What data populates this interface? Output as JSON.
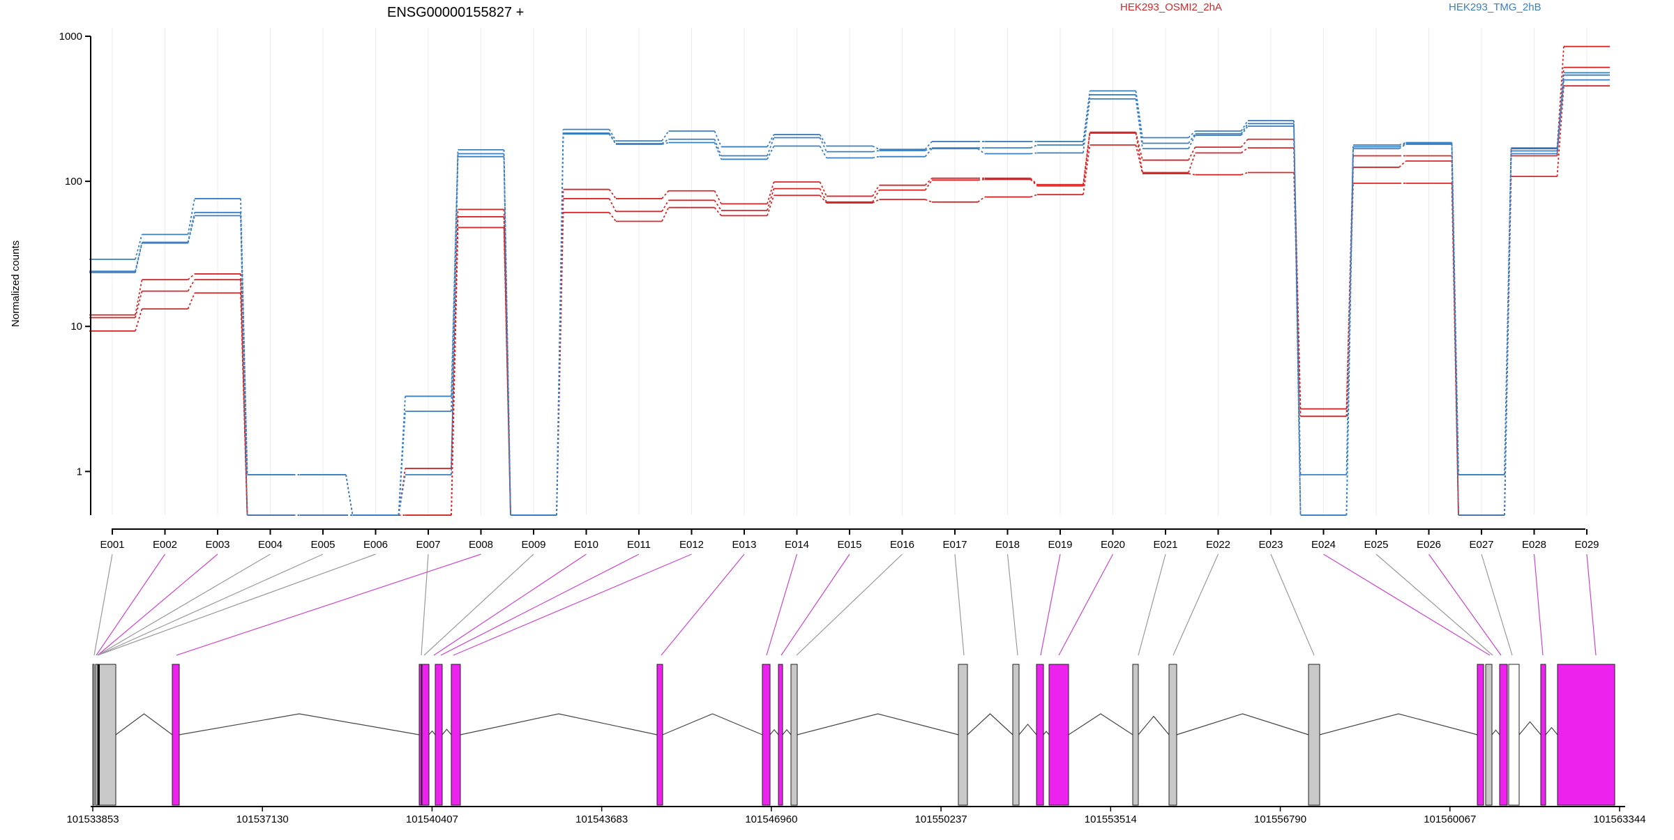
{
  "chart_data": {
    "type": "line",
    "title": "ENSG00000155827 +",
    "ylabel": "Normalized counts",
    "yscale": "log",
    "ylim": [
      0.5,
      1000
    ],
    "yticks": [
      "1",
      "10",
      "100",
      "1000"
    ],
    "grid": "vertical lines at each exon",
    "legend": [
      {
        "name": "HEK293_OSMI2_2hA",
        "color": "#d62728"
      },
      {
        "name": "HEK293_TMG_2hB",
        "color": "#3a7fc1"
      }
    ],
    "categories": [
      "E001",
      "E002",
      "E003",
      "E004",
      "E005",
      "E006",
      "E007",
      "E008",
      "E009",
      "E010",
      "E011",
      "E012",
      "E013",
      "E014",
      "E015",
      "E016",
      "E017",
      "E018",
      "E019",
      "E020",
      "E021",
      "E022",
      "E023",
      "E024",
      "E025",
      "E026",
      "E027",
      "E028",
      "E029"
    ],
    "series": [
      {
        "group": "HEK293_OSMI2_2hA",
        "color": "#d62728",
        "values": [
          12,
          21,
          23,
          0.5,
          0.5,
          0.5,
          1.05,
          64,
          0.5,
          88,
          76,
          86,
          70,
          99,
          79,
          94,
          105,
          105,
          95,
          218,
          140,
          172,
          195,
          2.7,
          150,
          150,
          0.5,
          168,
          850
        ]
      },
      {
        "group": "HEK293_OSMI2_2hA",
        "color": "#d62728",
        "values": [
          11.5,
          17.5,
          21,
          0.5,
          0.5,
          0.5,
          0.5,
          57,
          0.5,
          76,
          62,
          74,
          63,
          89,
          72,
          87,
          102,
          103,
          93,
          215,
          115,
          157,
          170,
          2.4,
          125,
          138,
          0.5,
          150,
          610
        ]
      },
      {
        "group": "HEK293_OSMI2_2hA",
        "color": "#d62728",
        "values": [
          9.3,
          13.2,
          17,
          0.5,
          0.5,
          0.5,
          0.5,
          48,
          0.5,
          61,
          53,
          66,
          58,
          80,
          71,
          75,
          72,
          78,
          81,
          178,
          113,
          111,
          115,
          2.4,
          97,
          97,
          0.5,
          108,
          455
        ]
      },
      {
        "group": "HEK293_TMG_2hB",
        "color": "#3a7fc1",
        "values": [
          29,
          43,
          76,
          0.95,
          0.95,
          0.5,
          3.3,
          165,
          0.5,
          228,
          190,
          222,
          173,
          210,
          175,
          166,
          188,
          188,
          188,
          420,
          200,
          222,
          262,
          0.95,
          178,
          185,
          0.95,
          170,
          560
        ]
      },
      {
        "group": "HEK293_TMG_2hB",
        "color": "#3a7fc1",
        "values": [
          24,
          38,
          61,
          0.95,
          0.95,
          0.5,
          2.6,
          155,
          0.5,
          215,
          182,
          195,
          150,
          200,
          160,
          163,
          170,
          170,
          178,
          395,
          183,
          213,
          250,
          0.5,
          173,
          182,
          0.95,
          162,
          540
        ]
      },
      {
        "group": "HEK293_TMG_2hB",
        "color": "#3a7fc1",
        "values": [
          23.5,
          37.5,
          58,
          0.5,
          0.5,
          0.5,
          0.95,
          148,
          0.5,
          212,
          180,
          185,
          142,
          175,
          145,
          148,
          168,
          155,
          157,
          370,
          168,
          208,
          240,
          0.5,
          168,
          180,
          0.5,
          155,
          500
        ]
      }
    ],
    "genomic_axis": {
      "ticks": [
        "101533853",
        "101537130",
        "101540407",
        "101543683",
        "101546960",
        "101550237",
        "101553514",
        "101556790",
        "101560067",
        "101563344"
      ]
    }
  }
}
